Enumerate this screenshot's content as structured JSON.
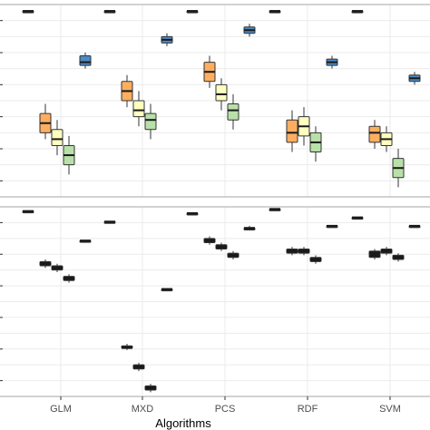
{
  "chart_data": {
    "type": "boxplot",
    "xlabel": "Algorithms",
    "categories": [
      "GLM",
      "MXD",
      "PCS",
      "RDF",
      "SVM"
    ],
    "grid": true,
    "colors": {
      "black": "#1a1a1a",
      "orange": "#fdae61",
      "yellow": "#ffffbf",
      "green": "#b8e0a8",
      "blue": "#4a89c6",
      "panel_border": "#b3b3b3",
      "grid": "#ebebeb"
    },
    "panels": [
      {
        "name": "top",
        "series": [
          {
            "color_key": "black",
            "values": [
              [
                1.0,
                1.0,
                1.0,
                1.0,
                1.0
              ],
              [
                1.0,
                1.0,
                1.0,
                1.0,
                1.0
              ],
              [
                1.0,
                1.0,
                1.0,
                1.0,
                1.0
              ],
              [
                1.0,
                1.0,
                1.0,
                1.0,
                1.0
              ],
              [
                1.0,
                1.0,
                1.0,
                1.0,
                1.0
              ]
            ]
          },
          {
            "color_key": "orange",
            "values": [
              [
                0.6,
                0.62,
                0.65,
                0.68,
                0.71
              ],
              [
                0.7,
                0.72,
                0.75,
                0.78,
                0.8
              ],
              [
                0.76,
                0.78,
                0.81,
                0.84,
                0.86
              ],
              [
                0.56,
                0.59,
                0.62,
                0.66,
                0.69
              ],
              [
                0.57,
                0.59,
                0.62,
                0.64,
                0.66
              ]
            ]
          },
          {
            "color_key": "yellow",
            "values": [
              [
                0.55,
                0.58,
                0.6,
                0.63,
                0.66
              ],
              [
                0.64,
                0.67,
                0.69,
                0.72,
                0.75
              ],
              [
                0.69,
                0.72,
                0.74,
                0.77,
                0.79
              ],
              [
                0.58,
                0.61,
                0.64,
                0.67,
                0.7
              ],
              [
                0.56,
                0.58,
                0.6,
                0.62,
                0.64
              ]
            ]
          },
          {
            "color_key": "green",
            "values": [
              [
                0.49,
                0.52,
                0.55,
                0.58,
                0.61
              ],
              [
                0.6,
                0.63,
                0.66,
                0.68,
                0.71
              ],
              [
                0.63,
                0.66,
                0.69,
                0.71,
                0.74
              ],
              [
                0.53,
                0.56,
                0.59,
                0.62,
                0.64
              ],
              [
                0.45,
                0.48,
                0.51,
                0.54,
                0.57
              ]
            ]
          },
          {
            "color_key": "blue",
            "values": [
              [
                0.82,
                0.83,
                0.84,
                0.86,
                0.87
              ],
              [
                0.89,
                0.9,
                0.91,
                0.92,
                0.93
              ],
              [
                0.92,
                0.93,
                0.94,
                0.95,
                0.96
              ],
              [
                0.82,
                0.83,
                0.84,
                0.85,
                0.86
              ],
              [
                0.77,
                0.78,
                0.79,
                0.8,
                0.81
              ]
            ]
          }
        ]
      },
      {
        "name": "bottom",
        "series": [
          {
            "color_key": "black",
            "values": [
              [
                1.0,
                1.0,
                1.0,
                1.0,
                1.0
              ],
              [
                0.95,
                0.95,
                0.95,
                0.95,
                0.95
              ],
              [
                0.99,
                0.99,
                0.99,
                0.99,
                0.99
              ],
              [
                1.01,
                1.01,
                1.01,
                1.01,
                1.01
              ],
              [
                0.97,
                0.97,
                0.97,
                0.97,
                0.97
              ]
            ]
          },
          {
            "color_key": "black",
            "values": [
              [
                0.73,
                0.74,
                0.75,
                0.76,
                0.77
              ],
              [
                0.34,
                0.35,
                0.35,
                0.36,
                0.37
              ],
              [
                0.84,
                0.85,
                0.86,
                0.87,
                0.88
              ],
              [
                0.79,
                0.8,
                0.81,
                0.82,
                0.83
              ],
              [
                0.77,
                0.78,
                0.8,
                0.81,
                0.82
              ]
            ]
          },
          {
            "color_key": "black",
            "values": [
              [
                0.71,
                0.72,
                0.73,
                0.74,
                0.75
              ],
              [
                0.24,
                0.25,
                0.26,
                0.27,
                0.28
              ],
              [
                0.81,
                0.82,
                0.83,
                0.84,
                0.85
              ],
              [
                0.79,
                0.8,
                0.81,
                0.82,
                0.83
              ],
              [
                0.79,
                0.8,
                0.81,
                0.82,
                0.83
              ]
            ]
          },
          {
            "color_key": "black",
            "values": [
              [
                0.66,
                0.67,
                0.68,
                0.69,
                0.7
              ],
              [
                0.14,
                0.15,
                0.16,
                0.17,
                0.18
              ],
              [
                0.77,
                0.78,
                0.79,
                0.8,
                0.81
              ],
              [
                0.75,
                0.76,
                0.77,
                0.78,
                0.79
              ],
              [
                0.76,
                0.77,
                0.78,
                0.79,
                0.8
              ]
            ]
          },
          {
            "color_key": "black",
            "values": [
              [
                0.86,
                0.86,
                0.86,
                0.86,
                0.86
              ],
              [
                0.63,
                0.63,
                0.63,
                0.63,
                0.63
              ],
              [
                0.91,
                0.91,
                0.92,
                0.92,
                0.93
              ],
              [
                0.93,
                0.93,
                0.93,
                0.93,
                0.93
              ],
              [
                0.93,
                0.93,
                0.93,
                0.93,
                0.93
              ]
            ]
          }
        ]
      }
    ]
  }
}
